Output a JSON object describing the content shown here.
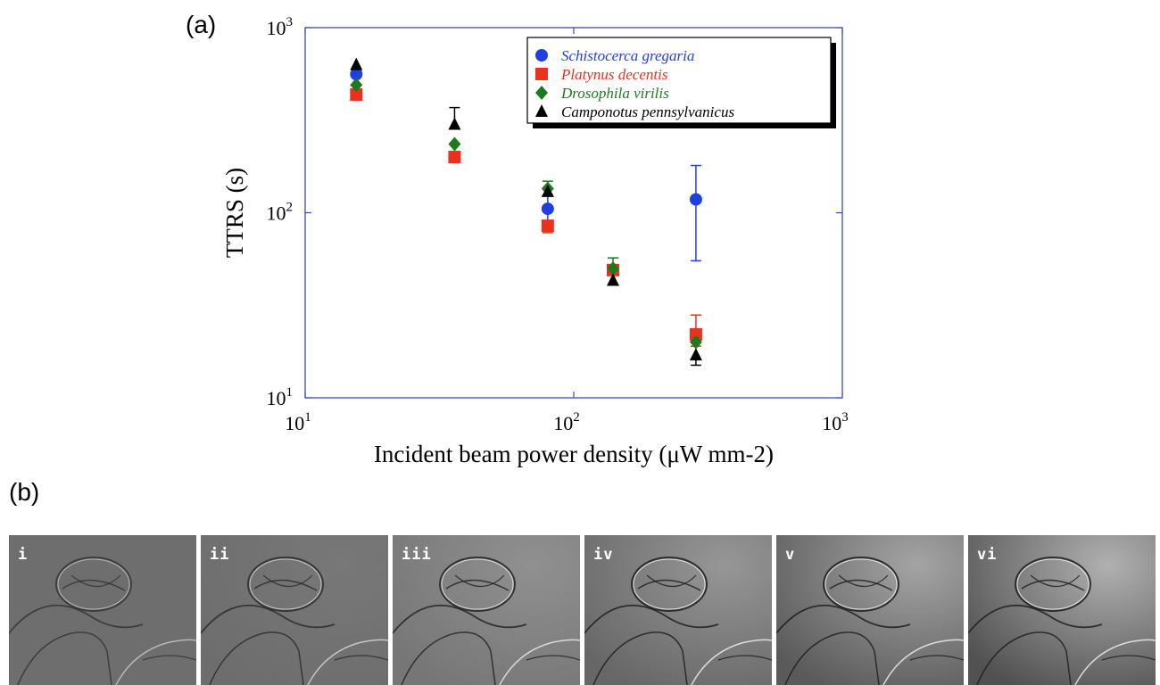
{
  "panel_a_label": "(a)",
  "panel_b_label": "(b)",
  "chart_data": {
    "type": "scatter",
    "xlabel": "Incident beam power density (μW mm-2)",
    "ylabel": "TTRS (s)",
    "xscale": "log",
    "yscale": "log",
    "xlim": [
      10,
      1000
    ],
    "ylim": [
      10,
      1000
    ],
    "x_ticks": [
      {
        "value": 10,
        "base": "10",
        "exp": "1"
      },
      {
        "value": 100,
        "base": "10",
        "exp": "2"
      },
      {
        "value": 1000,
        "base": "10",
        "exp": "3"
      }
    ],
    "y_ticks": [
      {
        "value": 10,
        "base": "10",
        "exp": "1"
      },
      {
        "value": 100,
        "base": "10",
        "exp": "2"
      },
      {
        "value": 1000,
        "base": "10",
        "exp": "3"
      }
    ],
    "grid": false,
    "legend_position": "top-right",
    "axis_color": "#3b4cc0",
    "series": [
      {
        "name": "Schistocerca gregaria",
        "marker": "circle",
        "color": "#1f3fe0",
        "x": [
          15.5,
          80,
          285
        ],
        "y": [
          560,
          105,
          118
        ],
        "err_low": [
          null,
          80,
          55
        ],
        "err_high": [
          null,
          125,
          180
        ]
      },
      {
        "name": "Platynus decentis",
        "marker": "square",
        "color": "#e8321e",
        "x": [
          15.5,
          36,
          80,
          140,
          285
        ],
        "y": [
          435,
          200,
          85,
          49,
          22
        ],
        "err_low": [
          null,
          null,
          78,
          null,
          19
        ],
        "err_high": [
          null,
          null,
          null,
          null,
          28
        ]
      },
      {
        "name": "Drosophila virilis",
        "marker": "diamond",
        "color": "#1f7a1f",
        "x": [
          15.5,
          36,
          80,
          140,
          285
        ],
        "y": [
          490,
          235,
          135,
          50,
          20
        ],
        "err_low": [
          null,
          null,
          null,
          null,
          null
        ],
        "err_high": [
          null,
          null,
          148,
          57,
          null
        ]
      },
      {
        "name": "Camponotus pennsylvanicus",
        "marker": "triangle",
        "color": "#000000",
        "x": [
          15.5,
          36,
          80,
          140,
          285
        ],
        "y": [
          630,
          300,
          130,
          43,
          17
        ],
        "err_low": [
          null,
          null,
          null,
          null,
          15
        ],
        "err_high": [
          null,
          370,
          null,
          null,
          null
        ]
      }
    ]
  },
  "frames": [
    {
      "label": "i",
      "brightness": 0.55,
      "contrast": 0.5,
      "vignette": 0.0
    },
    {
      "label": "ii",
      "brightness": 0.6,
      "contrast": 0.7,
      "vignette": 0.1
    },
    {
      "label": "iii",
      "brightness": 0.72,
      "contrast": 0.9,
      "vignette": 0.2
    },
    {
      "label": "iv",
      "brightness": 0.75,
      "contrast": 1.0,
      "vignette": 0.35
    },
    {
      "label": "v",
      "brightness": 0.82,
      "contrast": 1.0,
      "vignette": 0.5
    },
    {
      "label": "vi",
      "brightness": 0.88,
      "contrast": 1.0,
      "vignette": 0.6
    }
  ]
}
